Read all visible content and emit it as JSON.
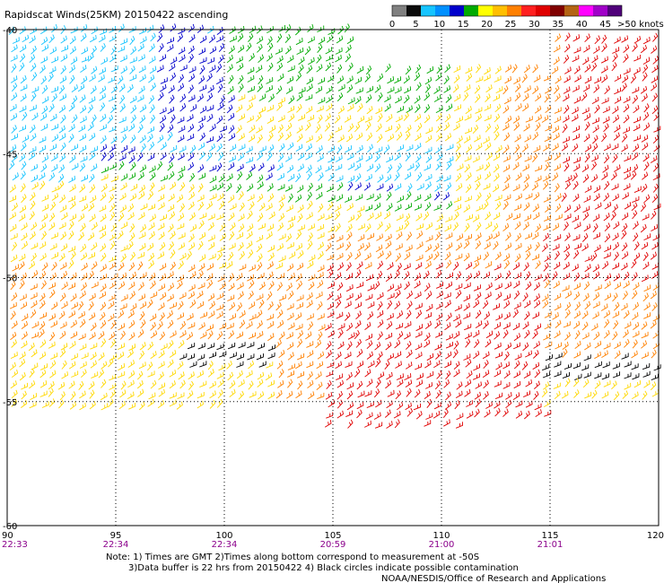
{
  "title": "Rapidscat Winds(25KM) 20150422 ascending",
  "legend": {
    "unit_label": ">50 knots",
    "tick_labels": [
      "0",
      "5",
      "10",
      "15",
      "20",
      "25",
      "30",
      "35",
      "40",
      "45"
    ],
    "colors": [
      "#808080",
      "#0b0b0b",
      "#16c4ff",
      "#0090ff",
      "#0000cc",
      "#00aa00",
      "#ffff00",
      "#ffbf00",
      "#ff8000",
      "#ff2020",
      "#e00000",
      "#800000",
      "#b46414",
      "#ff00ff",
      "#a000c8",
      "#50007a"
    ]
  },
  "axes": {
    "x_labels": [
      "90",
      "95",
      "100",
      "105",
      "110",
      "115",
      "120"
    ],
    "y_labels": [
      "-40",
      "-45",
      "-50",
      "-55",
      "-60"
    ],
    "time_labels": [
      "22:33",
      "22:34",
      "22:34",
      "20:59",
      "21:00",
      "21:01"
    ]
  },
  "notes": {
    "line1": "Note: 1) Times are GMT 2)Times along bottom correspond to measurement at -50S",
    "line2": "3)Data buffer is 22 hrs from 20150422 4) Black circles indicate possible contamination",
    "credit": "NOAA/NESDIS/Office of Research and Applications"
  },
  "map_data": {
    "lon_range": [
      90,
      120
    ],
    "lat_range": [
      -60,
      -40
    ],
    "gridlines": true,
    "wind_regions": [
      {
        "name": "light-blue",
        "color": "#16c4ff"
      },
      {
        "name": "blue",
        "color": "#0000cc"
      },
      {
        "name": "green",
        "color": "#00aa00"
      },
      {
        "name": "yellow",
        "color": "#ffd800"
      },
      {
        "name": "orange",
        "color": "#ff8000"
      },
      {
        "name": "red",
        "color": "#e00000"
      },
      {
        "name": "black",
        "color": "#000000"
      }
    ]
  }
}
